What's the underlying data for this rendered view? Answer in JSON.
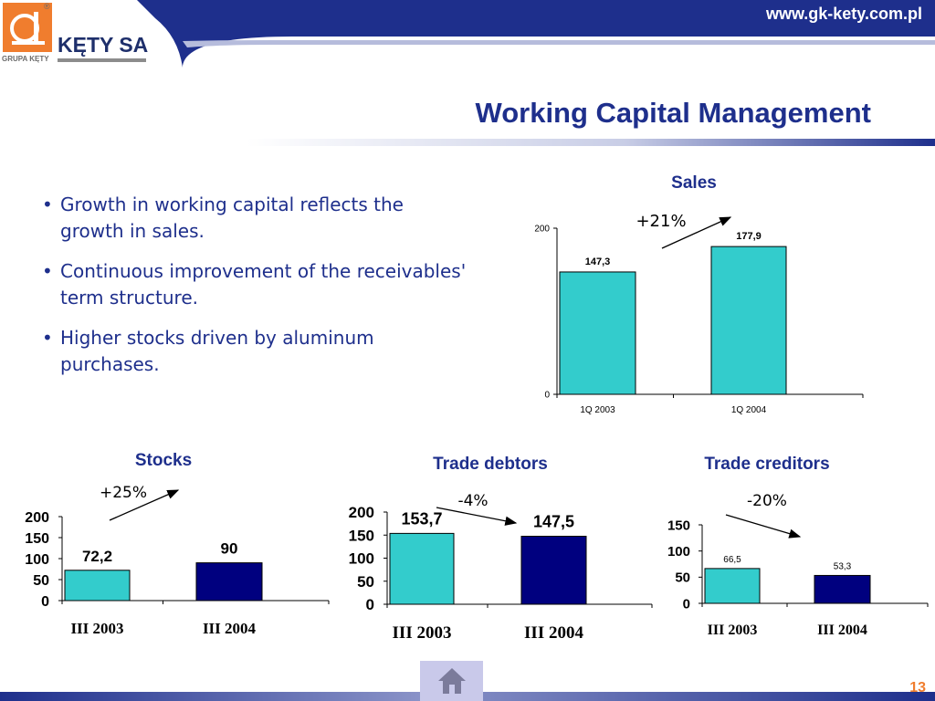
{
  "header": {
    "website": "www.gk-kety.com.pl",
    "logo_text": "KĘTY SA",
    "logo_subtitle": "GRUPA KĘTY",
    "logo_registered": "®"
  },
  "title": "Working Capital Management",
  "bullets": [
    "Growth in working capital reflects the growth in sales.",
    "Continuous improvement of the receivables' term structure.",
    "Higher stocks driven by aluminum purchases."
  ],
  "colors": {
    "navy": "#00007f",
    "teal": "#33cccc",
    "title_blue": "#1e2f8c",
    "orange": "#f07d2e",
    "home_button_bg": "#c9c9ea"
  },
  "chart_data": [
    {
      "id": "sales",
      "type": "bar",
      "title": "Sales",
      "categories": [
        "1Q 2003",
        "1Q 2004"
      ],
      "values": [
        147.3,
        177.9
      ],
      "value_labels": [
        "147,3",
        "177,9"
      ],
      "bar_colors": [
        "#33cccc",
        "#33cccc"
      ],
      "ylim": [
        0,
        200
      ],
      "yticks": [
        "0",
        "200"
      ],
      "annotation": "+21%",
      "grid": false
    },
    {
      "id": "stocks",
      "type": "bar",
      "title": "Stocks",
      "categories": [
        "III 2003",
        "III 2004"
      ],
      "values": [
        72.2,
        90
      ],
      "value_labels": [
        "72,2",
        "90"
      ],
      "bar_colors": [
        "#33cccc",
        "#00007f"
      ],
      "ylim": [
        0,
        200
      ],
      "yticks": [
        "0",
        "50",
        "100",
        "150",
        "200"
      ],
      "annotation": "+25%",
      "grid": false
    },
    {
      "id": "trade_debtors",
      "type": "bar",
      "title": "Trade debtors",
      "categories": [
        "III 2003",
        "III 2004"
      ],
      "values": [
        153.7,
        147.5
      ],
      "value_labels": [
        "153,7",
        "147,5"
      ],
      "bar_colors": [
        "#33cccc",
        "#00007f"
      ],
      "ylim": [
        0,
        200
      ],
      "yticks": [
        "0",
        "50",
        "100",
        "150",
        "200"
      ],
      "annotation": "-4%",
      "grid": false
    },
    {
      "id": "trade_creditors",
      "type": "bar",
      "title": "Trade creditors",
      "categories": [
        "III 2003",
        "III 2004"
      ],
      "values": [
        66.5,
        53.3
      ],
      "value_labels": [
        "66,5",
        "53,3"
      ],
      "bar_colors": [
        "#33cccc",
        "#00007f"
      ],
      "ylim": [
        0,
        150
      ],
      "yticks": [
        "0",
        "50",
        "100",
        "150"
      ],
      "annotation": "-20%",
      "grid": false
    }
  ],
  "footer": {
    "page_number": "13",
    "home_icon": "home-icon"
  }
}
